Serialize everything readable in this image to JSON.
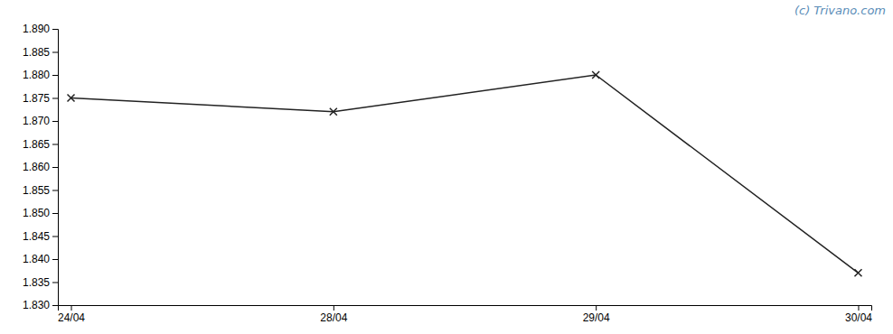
{
  "chart_data": {
    "type": "line",
    "categories": [
      "24/04",
      "28/04",
      "29/04",
      "30/04"
    ],
    "values": [
      1.875,
      1.872,
      1.88,
      1.837
    ],
    "color": "#222222",
    "marker": "x",
    "ylim": [
      1.83,
      1.89
    ],
    "yticks": [
      {
        "value": 1.83,
        "label": "1.830"
      },
      {
        "value": 1.835,
        "label": "1.835"
      },
      {
        "value": 1.84,
        "label": "1.840"
      },
      {
        "value": 1.845,
        "label": "1.845"
      },
      {
        "value": 1.85,
        "label": "1.850"
      },
      {
        "value": 1.855,
        "label": "1.855"
      },
      {
        "value": 1.86,
        "label": "1.860"
      },
      {
        "value": 1.865,
        "label": "1.865"
      },
      {
        "value": 1.87,
        "label": "1.870"
      },
      {
        "value": 1.875,
        "label": "1.875"
      },
      {
        "value": 1.88,
        "label": "1.880"
      },
      {
        "value": 1.885,
        "label": "1.885"
      },
      {
        "value": 1.89,
        "label": "1.890"
      }
    ],
    "annotations": [
      "(c) Trivano.com"
    ]
  }
}
